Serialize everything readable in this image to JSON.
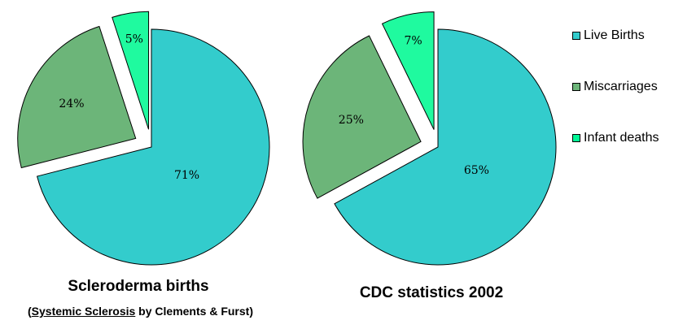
{
  "chart_data": [
    {
      "type": "pie",
      "title": "Scleroderma births",
      "subtitle_prefix": "(",
      "subtitle_link": "Systemic Sclerosis",
      "subtitle_suffix": " by Clements & Furst)",
      "categories": [
        "Live Births",
        "Miscarriages",
        "Infant deaths"
      ],
      "values": [
        71,
        24,
        5
      ],
      "labels": [
        "71%",
        "24%",
        "5%"
      ],
      "exploded": [
        "Miscarriages",
        "Infant deaths"
      ]
    },
    {
      "type": "pie",
      "title": "CDC statistics 2002",
      "categories": [
        "Live Births",
        "Miscarriages",
        "Infant deaths"
      ],
      "values": [
        65,
        25,
        7
      ],
      "labels": [
        "65%",
        "25%",
        "7%"
      ],
      "exploded": [
        "Miscarriages",
        "Infant deaths"
      ]
    }
  ],
  "legend": {
    "placement": "right",
    "items": [
      {
        "label": "Live Births",
        "color": "#33cccc"
      },
      {
        "label": "Miscarriages",
        "color": "#6cb579"
      },
      {
        "label": "Infant deaths",
        "color": "#00f796"
      }
    ]
  },
  "colors": {
    "live_births": "#33cccc",
    "miscarriages": "#6cb579",
    "infant_deaths": "#00f796",
    "infant_deaths_fill": "#1ffa9f",
    "outline": "#000000"
  }
}
